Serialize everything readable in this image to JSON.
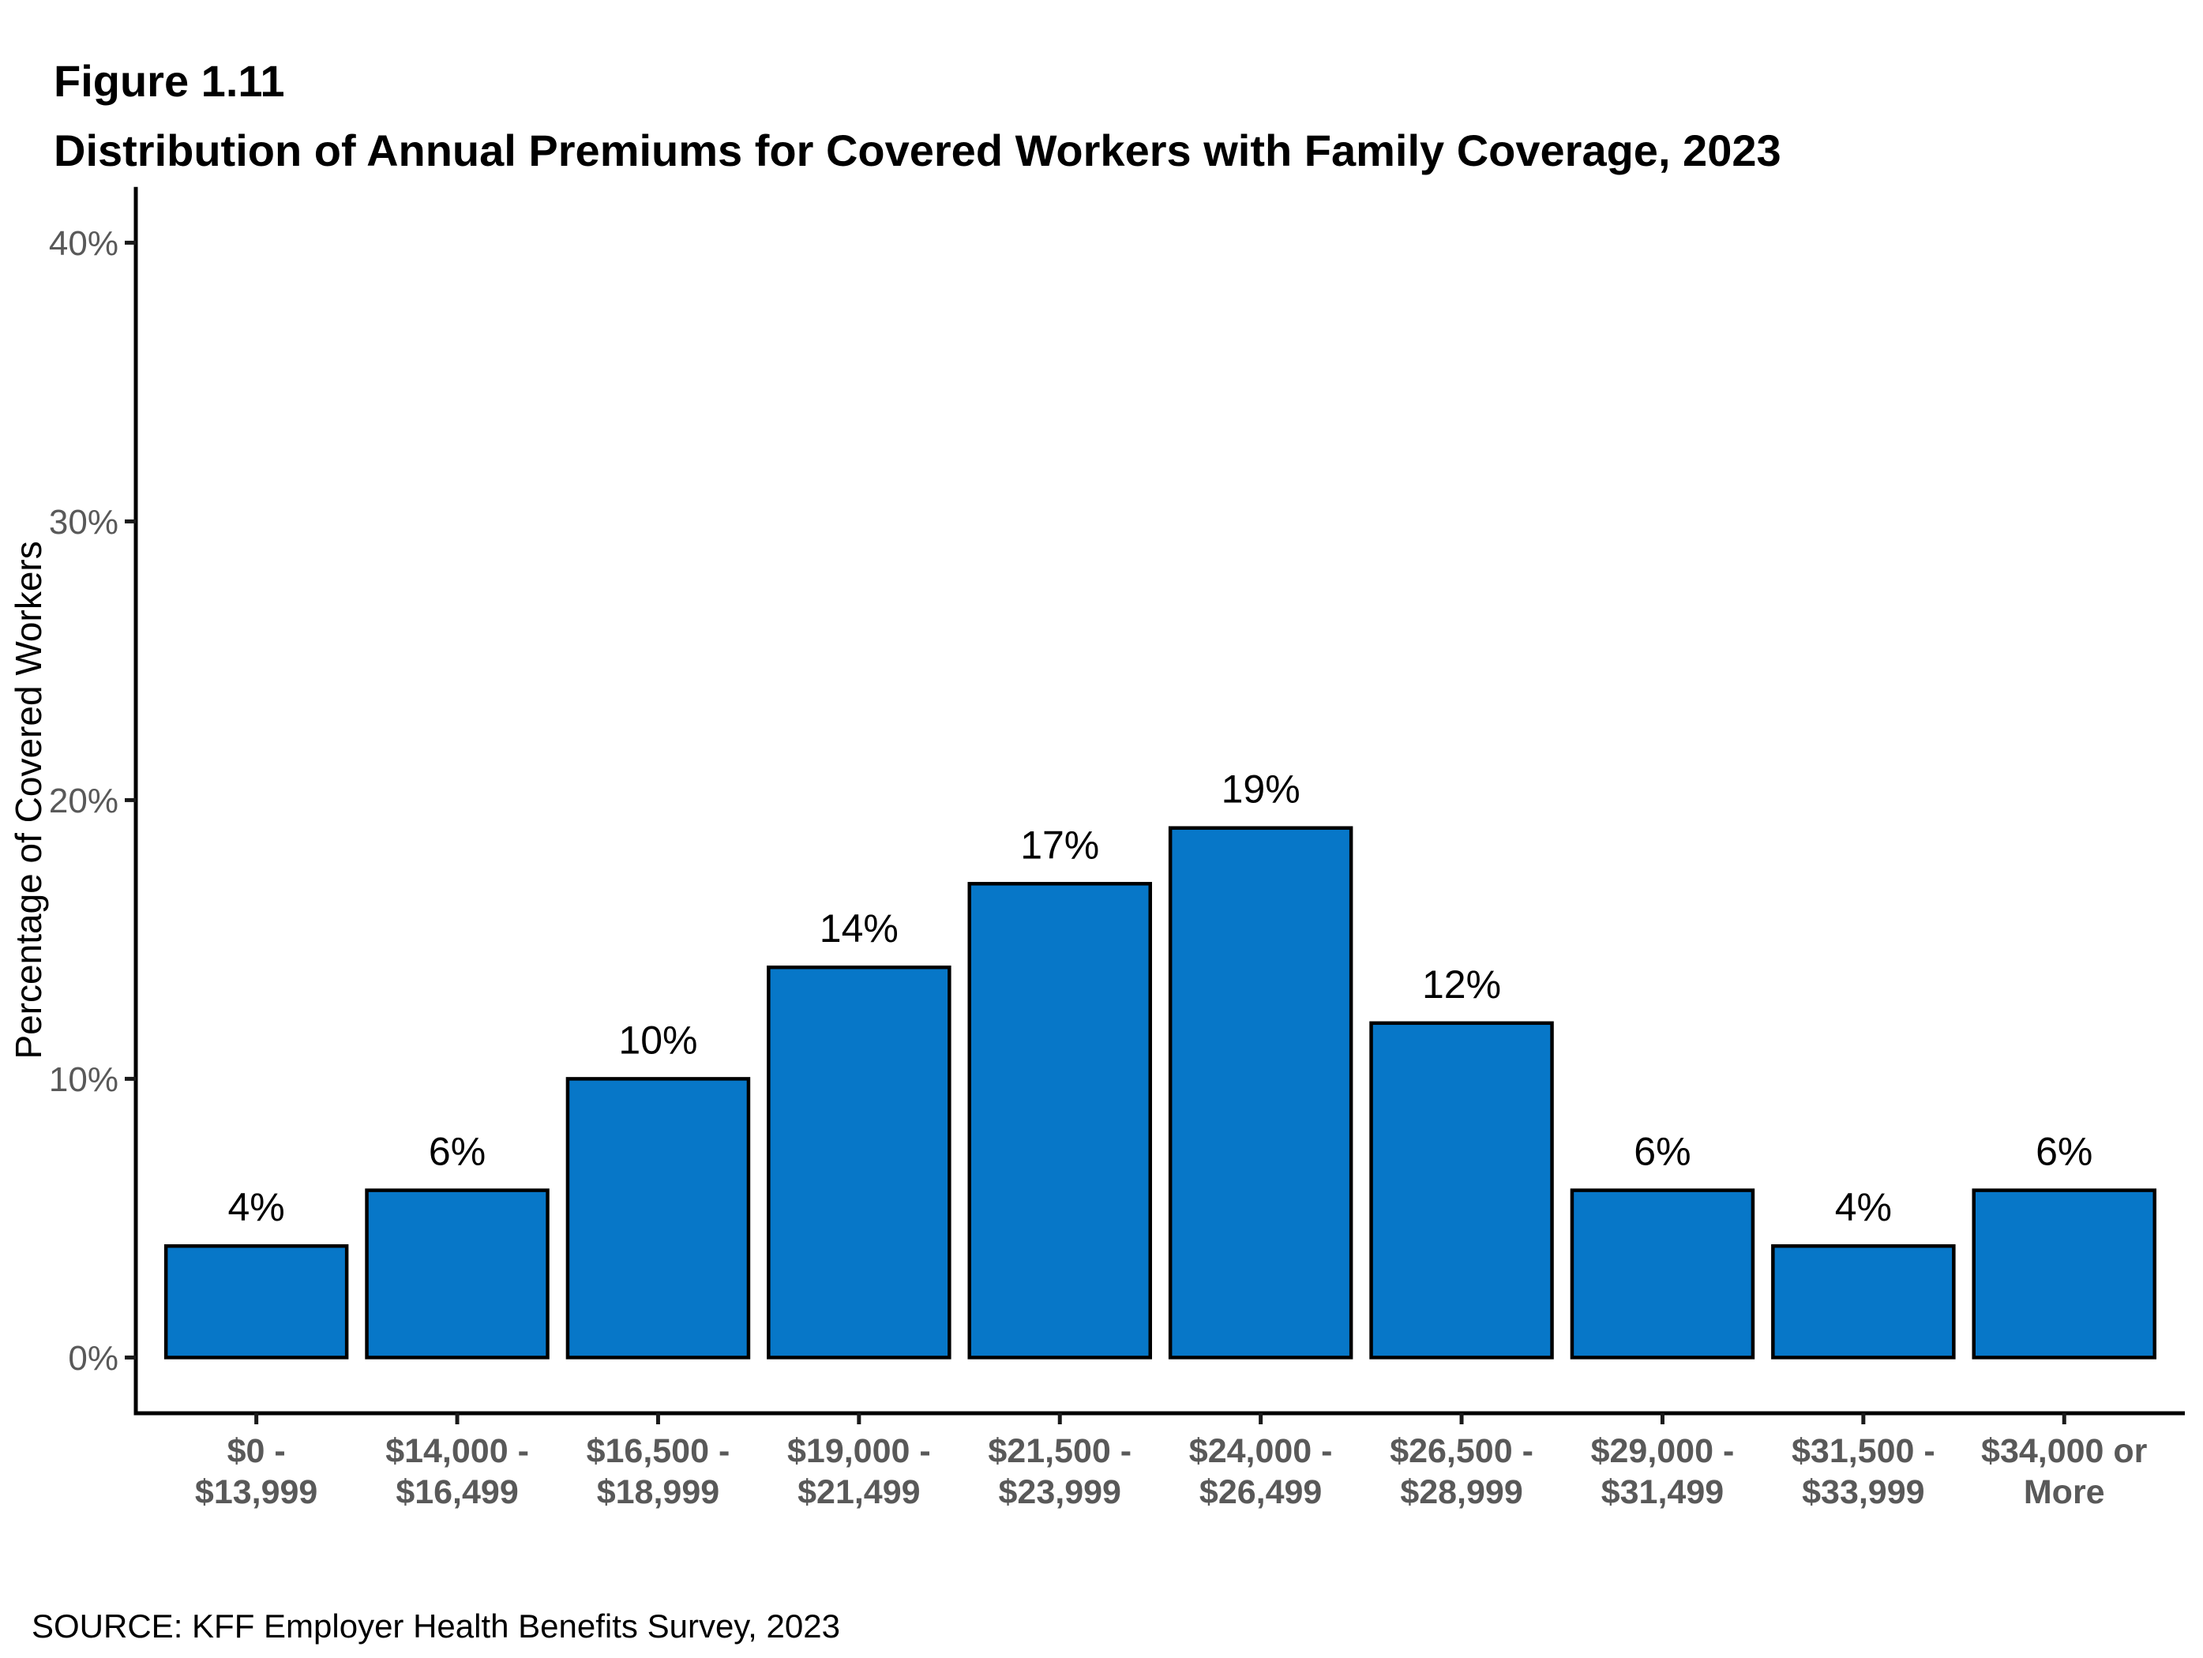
{
  "header": {
    "figure_label": "Figure 1.11",
    "title": "Distribution of Annual Premiums for Covered Workers with Family Coverage, 2023"
  },
  "footer": {
    "source": "SOURCE: KFF Employer Health Benefits Survey, 2023"
  },
  "chart_data": {
    "type": "bar",
    "title": "Distribution of Annual Premiums for Covered Workers with Family Coverage, 2023",
    "categories": [
      "$0 -\n$13,999",
      "$14,000 -\n$16,499",
      "$16,500 -\n$18,999",
      "$19,000 -\n$21,499",
      "$21,500 -\n$23,999",
      "$24,000 -\n$26,499",
      "$26,500 -\n$28,999",
      "$29,000 -\n$31,499",
      "$31,500 -\n$33,999",
      "$34,000 or\nMore"
    ],
    "values": [
      4,
      6,
      10,
      14,
      17,
      19,
      12,
      6,
      4,
      6
    ],
    "value_labels": [
      "4%",
      "6%",
      "10%",
      "14%",
      "17%",
      "19%",
      "12%",
      "6%",
      "4%",
      "6%"
    ],
    "xlabel": "",
    "ylabel": "Percentage of Covered Workers",
    "yticks": [
      0,
      10,
      20,
      30,
      40
    ],
    "ytick_labels": [
      "0%",
      "10%",
      "20%",
      "30%",
      "40%"
    ],
    "ylim": [
      0,
      40
    ],
    "grid": false,
    "legend": "none",
    "bar_color": "#0777C8",
    "bar_border_color": "#000000",
    "axis_color": "#000000",
    "tick_color": "#1a1a1a",
    "tick_label_color": "#595959"
  }
}
